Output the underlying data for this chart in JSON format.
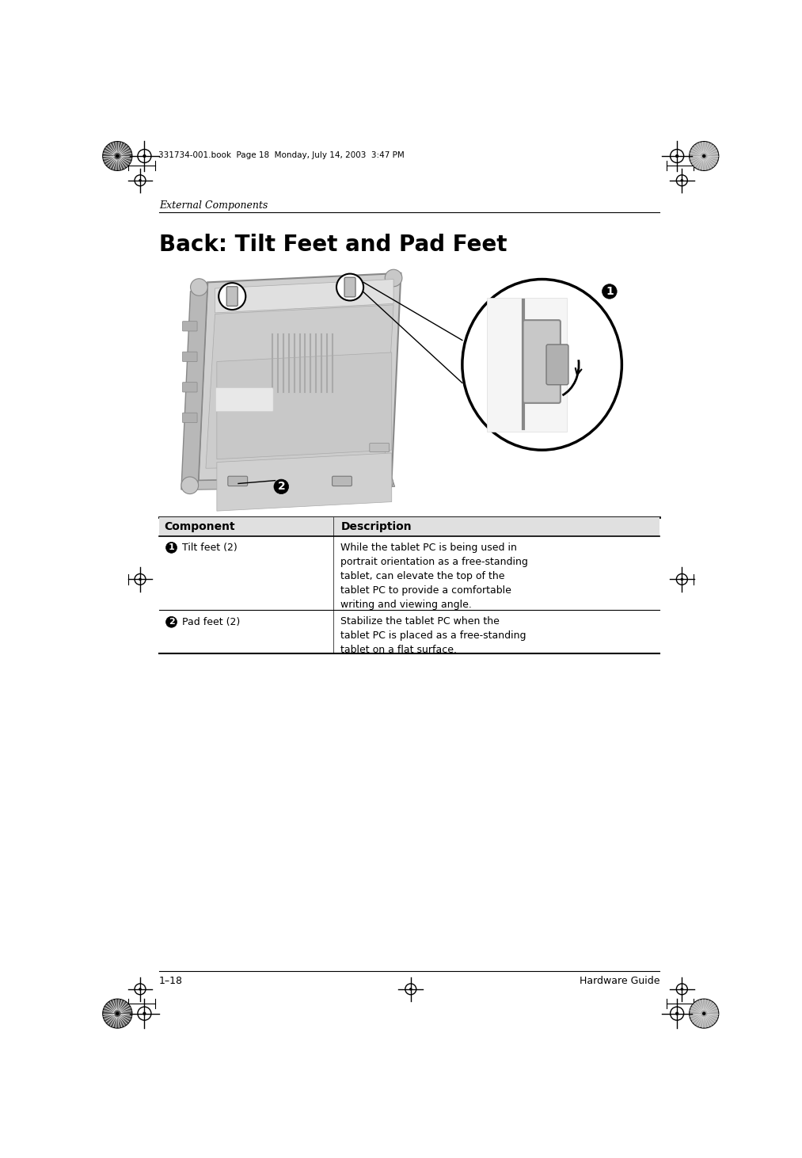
{
  "page_width": 10.13,
  "page_height": 14.62,
  "bg_color": "#ffffff",
  "top_text": "331734-001.book  Page 18  Monday, July 14, 2003  3:47 PM",
  "section_label": "External Components",
  "title": "Back: Tilt Feet and Pad Feet",
  "table_header_component": "Component",
  "table_header_description": "Description",
  "row1_num": "1",
  "row1_component": "Tilt feet (2)",
  "row1_desc": "While the tablet PC is being used in\nportrait orientation as a free-standing\ntablet, can elevate the top of the\ntablet PC to provide a comfortable\nwriting and viewing angle.",
  "row2_num": "2",
  "row2_component": "Pad feet (2)",
  "row2_desc": "Stabilize the tablet PC when the\ntablet PC is placed as a free-standing\ntablet on a flat surface.",
  "footer_left": "1–18",
  "footer_right": "Hardware Guide"
}
